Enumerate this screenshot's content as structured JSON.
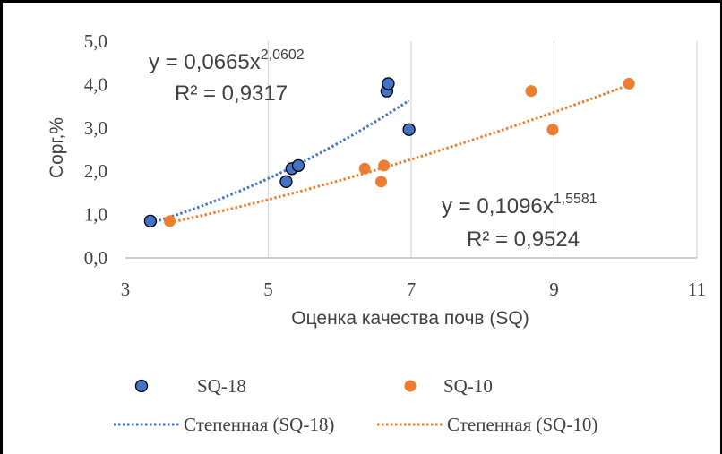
{
  "chart_data": {
    "type": "scatter",
    "xlabel": "Оценка качества почв (SQ)",
    "ylabel": "Сорг,%",
    "xlim": [
      3,
      11
    ],
    "ylim": [
      0,
      5
    ],
    "x_ticks": [
      "3",
      "5",
      "7",
      "9",
      "11"
    ],
    "y_ticks": [
      "0,0",
      "1,0",
      "2,0",
      "3,0",
      "4,0",
      "5,0"
    ],
    "grid": "vertical",
    "legend_position": "bottom",
    "series": [
      {
        "name": "SQ-18",
        "color": "#4472C4",
        "points": [
          [
            3.35,
            0.85
          ],
          [
            5.25,
            1.76
          ],
          [
            5.33,
            2.06
          ],
          [
            5.42,
            2.13
          ],
          [
            6.66,
            3.85
          ],
          [
            6.68,
            4.02
          ],
          [
            6.97,
            2.96
          ]
        ]
      },
      {
        "name": "SQ-10",
        "color": "#ED7D31",
        "points": [
          [
            3.62,
            0.85
          ],
          [
            6.35,
            2.06
          ],
          [
            6.58,
            1.76
          ],
          [
            6.62,
            2.13
          ],
          [
            8.68,
            3.85
          ],
          [
            8.98,
            2.96
          ],
          [
            10.05,
            4.02
          ]
        ]
      }
    ],
    "trendlines": [
      {
        "name": "Степенная (SQ-18)",
        "series": "SQ-18",
        "kind": "power",
        "a": 0.0665,
        "b": 2.0602,
        "x_range": [
          3.35,
          6.97
        ],
        "equation_main": "y = 0,0665x",
        "equation_exp": "2,0602",
        "r2": "R² = 0,9317",
        "color": "#4472C4"
      },
      {
        "name": "Степенная (SQ-10)",
        "series": "SQ-10",
        "kind": "power",
        "a": 0.1096,
        "b": 1.5581,
        "x_range": [
          3.62,
          10.05
        ],
        "equation_main": "y = 0,1096x",
        "equation_exp": "1,5581",
        "r2": "R² = 0,9524",
        "color": "#ED7D31"
      }
    ]
  }
}
